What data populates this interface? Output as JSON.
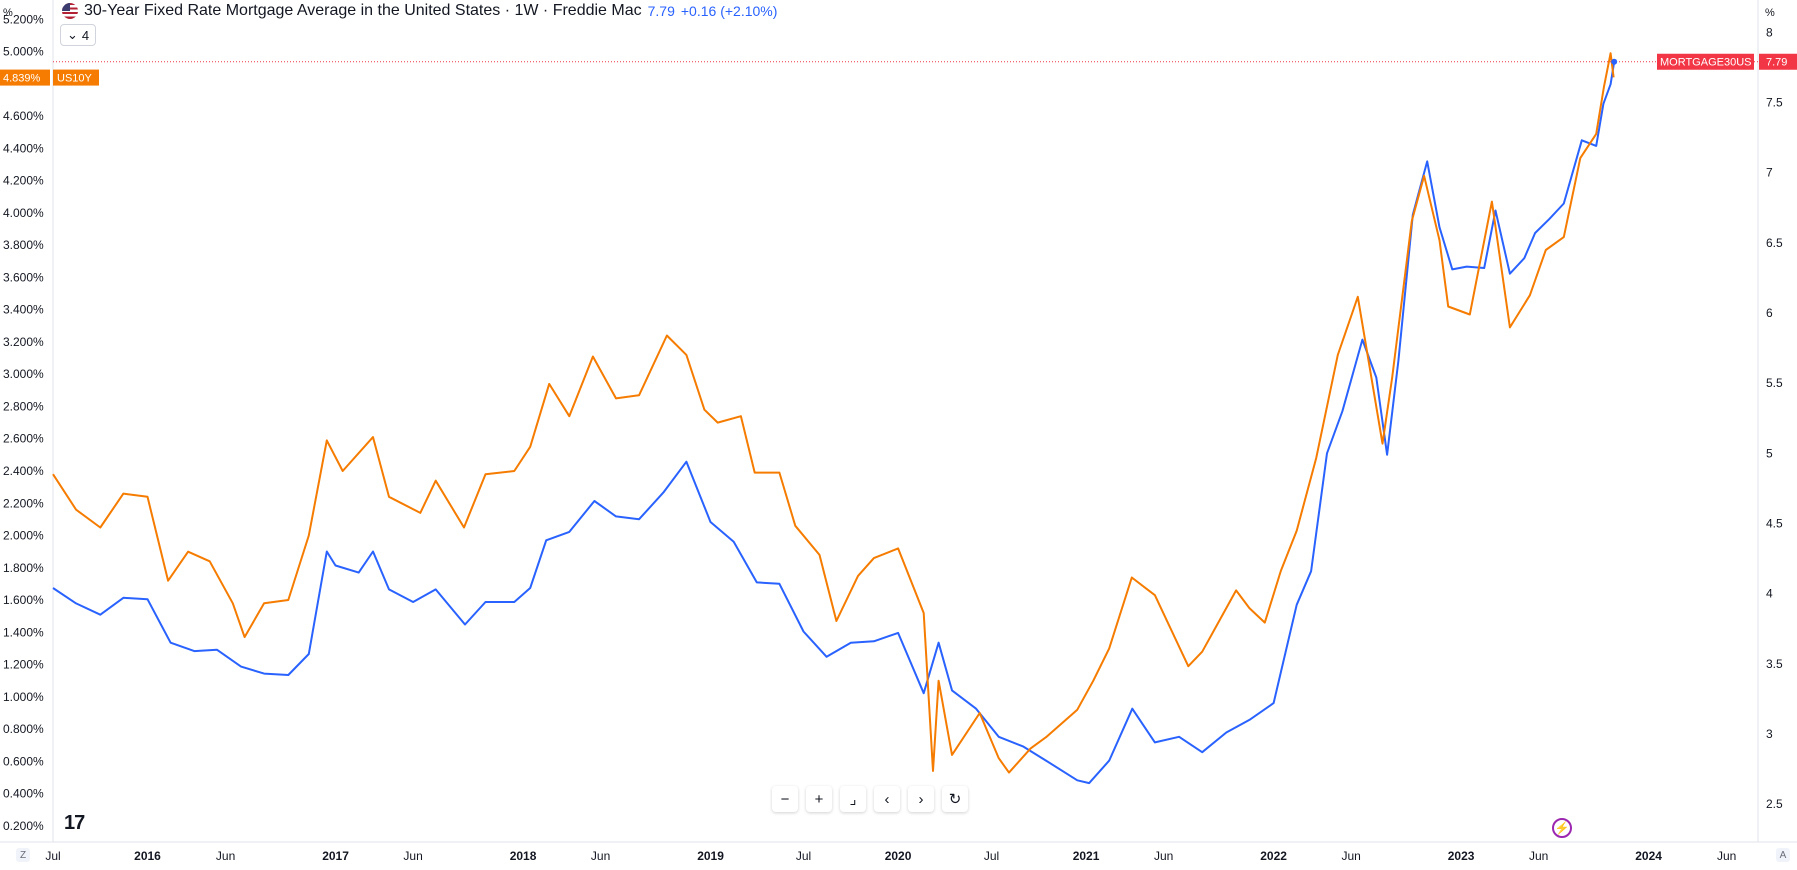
{
  "header": {
    "title": "30-Year Fixed Rate Mortgage Average in the United States · 1W · Freddie Mac",
    "value": "7.79",
    "change": "+0.16 (+2.10%)",
    "badge_count": "4"
  },
  "colors": {
    "mortgage": "#2962ff",
    "us10y": "#f57c00",
    "price_line": "#f23645",
    "grid": "#f0f3fa",
    "axis_text": "#131722"
  },
  "icons": [
    "flag-us-icon",
    "chevron-down-icon",
    "minus-icon",
    "plus-icon",
    "reset-scale-icon",
    "chevron-left-icon",
    "chevron-right-icon",
    "reset-icon",
    "tradingview-logo-icon",
    "bolt-icon"
  ],
  "nav_buttons": [
    "−",
    "+",
    "⌟",
    "‹",
    "›",
    "↻"
  ],
  "corner_left": "Z",
  "corner_right": "A",
  "logo_text": "17",
  "chart_data": {
    "type": "line",
    "left_axis": {
      "unit_label": "%",
      "ticks": [
        "5.200%",
        "5.000%",
        "4.600%",
        "4.400%",
        "4.200%",
        "4.000%",
        "3.800%",
        "3.600%",
        "3.400%",
        "3.200%",
        "3.000%",
        "2.800%",
        "2.600%",
        "2.400%",
        "2.200%",
        "2.000%",
        "1.800%",
        "1.600%",
        "1.400%",
        "1.200%",
        "1.000%",
        "0.800%",
        "0.600%",
        "0.400%",
        "0.200%"
      ],
      "ylim": [
        0.1,
        5.32
      ]
    },
    "right_axis": {
      "unit_label": "%",
      "ticks": [
        "8",
        "7.5",
        "7",
        "6.5",
        "6",
        "5.5",
        "5",
        "4.5",
        "4",
        "3.5",
        "3",
        "2.5"
      ],
      "ylim": [
        2.23,
        8.23
      ]
    },
    "x_axis": {
      "labels": [
        "Jul",
        "2016",
        "Jun",
        "2017",
        "Jun",
        "2018",
        "Jun",
        "2019",
        "Jul",
        "2020",
        "Jul",
        "2021",
        "Jun",
        "2022",
        "Jun",
        "2023",
        "Jun",
        "2024",
        "Jun"
      ],
      "bold": [
        "2016",
        "2017",
        "2018",
        "2019",
        "2020",
        "2021",
        "2022",
        "2023",
        "2024"
      ],
      "xlim": [
        "2015-07-01",
        "2024-08-01"
      ]
    },
    "last_value_labels": {
      "us10y_value": "4.839%",
      "us10y_name": "US10Y",
      "mortgage_name": "MORTGAGE30US",
      "mortgage_value": "7.79"
    },
    "series": [
      {
        "name": "MORTGAGE30US",
        "axis": "right",
        "color": "#2962ff",
        "points": [
          [
            "2015-07-01",
            4.04
          ],
          [
            "2015-08-15",
            3.93
          ],
          [
            "2015-10-01",
            3.85
          ],
          [
            "2015-11-15",
            3.97
          ],
          [
            "2016-01-01",
            3.96
          ],
          [
            "2016-02-15",
            3.65
          ],
          [
            "2016-04-01",
            3.59
          ],
          [
            "2016-05-15",
            3.6
          ],
          [
            "2016-07-01",
            3.48
          ],
          [
            "2016-08-15",
            3.43
          ],
          [
            "2016-10-01",
            3.42
          ],
          [
            "2016-11-10",
            3.57
          ],
          [
            "2016-12-15",
            4.3
          ],
          [
            "2017-01-01",
            4.2
          ],
          [
            "2017-02-15",
            4.15
          ],
          [
            "2017-03-15",
            4.3
          ],
          [
            "2017-04-15",
            4.03
          ],
          [
            "2017-06-01",
            3.94
          ],
          [
            "2017-07-15",
            4.03
          ],
          [
            "2017-09-10",
            3.78
          ],
          [
            "2017-10-20",
            3.94
          ],
          [
            "2017-12-15",
            3.94
          ],
          [
            "2018-01-15",
            4.04
          ],
          [
            "2018-02-15",
            4.38
          ],
          [
            "2018-04-01",
            4.44
          ],
          [
            "2018-05-20",
            4.66
          ],
          [
            "2018-07-01",
            4.55
          ],
          [
            "2018-08-15",
            4.53
          ],
          [
            "2018-10-01",
            4.72
          ],
          [
            "2018-11-15",
            4.94
          ],
          [
            "2019-01-01",
            4.51
          ],
          [
            "2019-02-15",
            4.37
          ],
          [
            "2019-04-01",
            4.08
          ],
          [
            "2019-05-15",
            4.07
          ],
          [
            "2019-07-01",
            3.73
          ],
          [
            "2019-08-15",
            3.55
          ],
          [
            "2019-10-01",
            3.65
          ],
          [
            "2019-11-15",
            3.66
          ],
          [
            "2020-01-01",
            3.72
          ],
          [
            "2020-02-20",
            3.29
          ],
          [
            "2020-03-20",
            3.65
          ],
          [
            "2020-04-15",
            3.31
          ],
          [
            "2020-06-01",
            3.18
          ],
          [
            "2020-07-15",
            2.98
          ],
          [
            "2020-09-01",
            2.91
          ],
          [
            "2020-10-15",
            2.81
          ],
          [
            "2020-12-15",
            2.67
          ],
          [
            "2021-01-07",
            2.65
          ],
          [
            "2021-02-15",
            2.81
          ],
          [
            "2021-04-01",
            3.18
          ],
          [
            "2021-05-15",
            2.94
          ],
          [
            "2021-07-01",
            2.98
          ],
          [
            "2021-08-15",
            2.87
          ],
          [
            "2021-10-01",
            3.01
          ],
          [
            "2021-11-15",
            3.1
          ],
          [
            "2022-01-01",
            3.22
          ],
          [
            "2022-02-15",
            3.92
          ],
          [
            "2022-03-15",
            4.16
          ],
          [
            "2022-04-15",
            5.0
          ],
          [
            "2022-05-15",
            5.3
          ],
          [
            "2022-06-23",
            5.81
          ],
          [
            "2022-07-20",
            5.54
          ],
          [
            "2022-08-10",
            4.99
          ],
          [
            "2022-09-01",
            5.66
          ],
          [
            "2022-09-29",
            6.7
          ],
          [
            "2022-10-27",
            7.08
          ],
          [
            "2022-11-20",
            6.61
          ],
          [
            "2022-12-15",
            6.31
          ],
          [
            "2023-01-12",
            6.33
          ],
          [
            "2023-02-15",
            6.32
          ],
          [
            "2023-03-09",
            6.73
          ],
          [
            "2023-04-06",
            6.28
          ],
          [
            "2023-05-04",
            6.39
          ],
          [
            "2023-05-25",
            6.57
          ],
          [
            "2023-06-22",
            6.67
          ],
          [
            "2023-07-20",
            6.78
          ],
          [
            "2023-08-24",
            7.23
          ],
          [
            "2023-09-21",
            7.19
          ],
          [
            "2023-10-05",
            7.49
          ],
          [
            "2023-10-19",
            7.63
          ],
          [
            "2023-10-26",
            7.79
          ]
        ]
      },
      {
        "name": "US10Y",
        "axis": "left",
        "color": "#f57c00",
        "points": [
          [
            "2015-07-01",
            2.38
          ],
          [
            "2015-08-15",
            2.16
          ],
          [
            "2015-10-01",
            2.05
          ],
          [
            "2015-11-15",
            2.26
          ],
          [
            "2016-01-01",
            2.24
          ],
          [
            "2016-02-10",
            1.72
          ],
          [
            "2016-03-20",
            1.9
          ],
          [
            "2016-05-01",
            1.84
          ],
          [
            "2016-06-15",
            1.58
          ],
          [
            "2016-07-08",
            1.37
          ],
          [
            "2016-08-15",
            1.58
          ],
          [
            "2016-10-01",
            1.6
          ],
          [
            "2016-11-10",
            2.0
          ],
          [
            "2016-12-15",
            2.59
          ],
          [
            "2017-01-15",
            2.4
          ],
          [
            "2017-03-15",
            2.61
          ],
          [
            "2017-04-15",
            2.24
          ],
          [
            "2017-06-15",
            2.14
          ],
          [
            "2017-07-15",
            2.34
          ],
          [
            "2017-09-08",
            2.05
          ],
          [
            "2017-10-20",
            2.38
          ],
          [
            "2017-12-15",
            2.4
          ],
          [
            "2018-01-15",
            2.55
          ],
          [
            "2018-02-21",
            2.94
          ],
          [
            "2018-04-01",
            2.74
          ],
          [
            "2018-05-17",
            3.11
          ],
          [
            "2018-07-01",
            2.85
          ],
          [
            "2018-08-15",
            2.87
          ],
          [
            "2018-10-08",
            3.24
          ],
          [
            "2018-11-15",
            3.12
          ],
          [
            "2018-12-20",
            2.78
          ],
          [
            "2019-01-15",
            2.7
          ],
          [
            "2019-03-01",
            2.74
          ],
          [
            "2019-03-28",
            2.39
          ],
          [
            "2019-05-15",
            2.39
          ],
          [
            "2019-06-15",
            2.06
          ],
          [
            "2019-08-01",
            1.88
          ],
          [
            "2019-09-03",
            1.47
          ],
          [
            "2019-10-15",
            1.75
          ],
          [
            "2019-11-15",
            1.86
          ],
          [
            "2020-01-01",
            1.92
          ],
          [
            "2020-02-20",
            1.52
          ],
          [
            "2020-03-09",
            0.54
          ],
          [
            "2020-03-20",
            1.1
          ],
          [
            "2020-04-15",
            0.64
          ],
          [
            "2020-06-08",
            0.9
          ],
          [
            "2020-07-15",
            0.62
          ],
          [
            "2020-08-04",
            0.53
          ],
          [
            "2020-09-15",
            0.68
          ],
          [
            "2020-10-15",
            0.75
          ],
          [
            "2020-12-15",
            0.92
          ],
          [
            "2021-01-15",
            1.1
          ],
          [
            "2021-02-15",
            1.3
          ],
          [
            "2021-03-31",
            1.74
          ],
          [
            "2021-05-15",
            1.63
          ],
          [
            "2021-07-19",
            1.19
          ],
          [
            "2021-08-15",
            1.28
          ],
          [
            "2021-10-20",
            1.66
          ],
          [
            "2021-11-15",
            1.55
          ],
          [
            "2021-12-15",
            1.46
          ],
          [
            "2022-01-15",
            1.78
          ],
          [
            "2022-02-15",
            2.03
          ],
          [
            "2022-03-25",
            2.48
          ],
          [
            "2022-05-06",
            3.12
          ],
          [
            "2022-06-14",
            3.48
          ],
          [
            "2022-08-01",
            2.57
          ],
          [
            "2022-08-20",
            2.98
          ],
          [
            "2022-09-27",
            3.95
          ],
          [
            "2022-10-21",
            4.23
          ],
          [
            "2022-11-20",
            3.83
          ],
          [
            "2022-12-07",
            3.42
          ],
          [
            "2023-01-18",
            3.37
          ],
          [
            "2023-03-02",
            4.07
          ],
          [
            "2023-04-06",
            3.29
          ],
          [
            "2023-05-15",
            3.49
          ],
          [
            "2023-06-15",
            3.77
          ],
          [
            "2023-07-20",
            3.85
          ],
          [
            "2023-08-21",
            4.34
          ],
          [
            "2023-09-21",
            4.49
          ],
          [
            "2023-10-06",
            4.78
          ],
          [
            "2023-10-19",
            4.99
          ],
          [
            "2023-10-25",
            4.84
          ]
        ]
      }
    ]
  }
}
